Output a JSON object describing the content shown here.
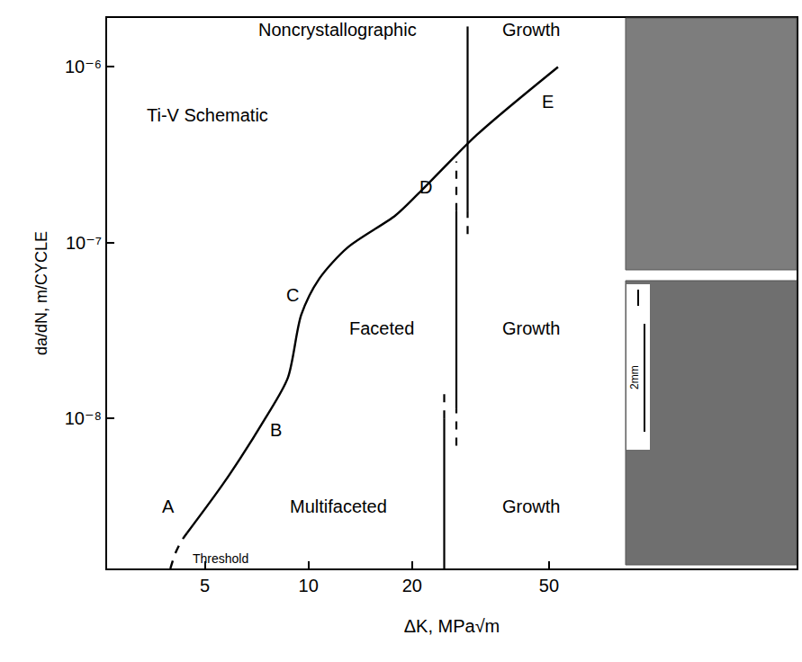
{
  "chart_data": {
    "type": "line",
    "log": true,
    "grid": false,
    "x_label": "ΔK, MPa√m",
    "y_label": "da/dN, m/CYCLE",
    "xlim": [
      2.6,
      262
    ],
    "ylim": [
      1.4e-09,
      1.9e-06
    ],
    "xticks": [
      5,
      10,
      20,
      50
    ],
    "yticks": [
      {
        "value": 1e-08,
        "label": "10⁻⁸"
      },
      {
        "value": 1e-07,
        "label": "10⁻⁷"
      },
      {
        "value": 1e-06,
        "label": "10⁻⁶"
      }
    ],
    "series": [
      {
        "color": "#000000",
        "line_style": "dashed",
        "x": [
          3.97,
          4.1,
          4.27,
          4.44
        ],
        "values": [
          1.4e-09,
          1.7e-09,
          2e-09,
          2.23e-09
        ]
      },
      {
        "color": "#000000",
        "line_style": "solid",
        "x": [
          4.44,
          5.71,
          7.49,
          8.71,
          9.53,
          10.75,
          13.0,
          17.9,
          20.9,
          30.9,
          53.1
        ],
        "values": [
          2.23e-09,
          4.37e-09,
          1e-08,
          1.7e-08,
          3.89e-08,
          6.24e-08,
          9.4e-08,
          1.43e-07,
          1.91e-07,
          4.12e-07,
          1e-06
        ]
      }
    ],
    "boundaries": [
      {
        "x": 24.8,
        "color": "#000000",
        "segments": [
          {
            "y": [
              1.4e-09,
              1e-08
            ],
            "line_style": "solid"
          },
          {
            "y": [
              1e-08,
              1.42e-08
            ],
            "line_style": "dashed"
          }
        ]
      },
      {
        "x": 26.9,
        "color": "#000000",
        "segments": [
          {
            "y": [
              7e-09,
              1.13e-08
            ],
            "line_style": "dashed"
          },
          {
            "y": [
              1.13e-08,
              1.51e-07
            ],
            "line_style": "solid"
          },
          {
            "y": [
              1.51e-07,
              2.9e-07
            ],
            "line_style": "dashed"
          }
        ]
      },
      {
        "x": 29.0,
        "color": "#000000",
        "segments": [
          {
            "y": [
              1.12e-07,
              1.51e-07
            ],
            "line_style": "dashed"
          },
          {
            "y": [
              1.51e-07,
              1.7e-06
            ],
            "line_style": "solid"
          }
        ]
      }
    ],
    "annotations": [
      "Noncrystallographic",
      "Growth",
      "Ti-V Schematic",
      "Faceted",
      "Growth",
      "Multifaceted",
      "Growth",
      "Threshold",
      "A",
      "B",
      "C",
      "D",
      "E"
    ],
    "scale_bar": "2mm"
  }
}
